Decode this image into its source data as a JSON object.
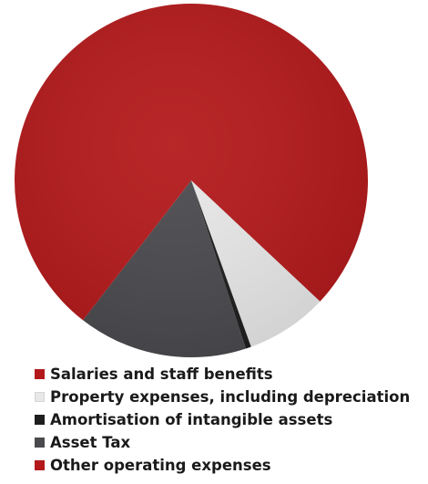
{
  "chart_data": {
    "type": "pie",
    "title": "",
    "start_angle_deg": 0,
    "direction": "clockwise",
    "legend_position": "bottom",
    "slices": [
      {
        "label": "Salaries and staff benefits",
        "value": 37,
        "color": "#b3191b"
      },
      {
        "label": "Property expenses, including depreciation",
        "value": 7.5,
        "color": "#e8e8e8"
      },
      {
        "label": "Amortisation of intangible assets",
        "value": 0.5,
        "color": "#1e1e1e"
      },
      {
        "label": "Asset Tax",
        "value": 15.5,
        "color": "#4a4a4e"
      },
      {
        "label": "Other operating expenses",
        "value": 39.5,
        "color": "#b3191b"
      }
    ]
  }
}
